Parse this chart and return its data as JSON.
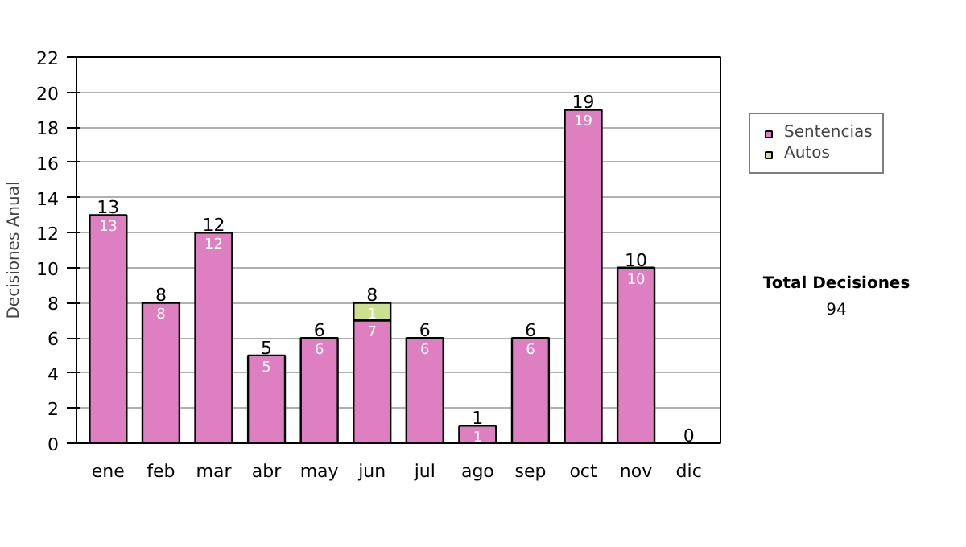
{
  "chart_data": {
    "type": "bar",
    "stacked": true,
    "ylabel": "Decisiones Anual",
    "categories": [
      "ene",
      "feb",
      "mar",
      "abr",
      "may",
      "jun",
      "jul",
      "ago",
      "sep",
      "oct",
      "nov",
      "dic"
    ],
    "series": [
      {
        "name": "Sentencias",
        "color": "#dd7fc0",
        "values": [
          13,
          8,
          12,
          5,
          6,
          7,
          6,
          1,
          6,
          19,
          10,
          0
        ],
        "value_labels": [
          "13",
          "8",
          "12",
          "5",
          "6",
          "7",
          "6",
          "1",
          "6",
          "19",
          "10",
          null
        ]
      },
      {
        "name": "Autos",
        "color": "#cce08f",
        "values": [
          0,
          0,
          0,
          0,
          0,
          1,
          0,
          0,
          0,
          0,
          0,
          0
        ],
        "value_labels": [
          null,
          null,
          null,
          null,
          null,
          "1",
          null,
          null,
          null,
          null,
          null,
          null
        ]
      }
    ],
    "totals": [
      "13",
      "8",
      "12",
      "5",
      "6",
      "8",
      "6",
      "1",
      "6",
      "19",
      "10",
      "0"
    ],
    "ylim": [
      0,
      22
    ],
    "yticks": [
      0,
      2,
      4,
      6,
      8,
      10,
      12,
      14,
      16,
      18,
      20,
      22
    ],
    "grid": "y",
    "legend": "right",
    "annotations": [
      "Total Decisiones",
      "94"
    ]
  }
}
